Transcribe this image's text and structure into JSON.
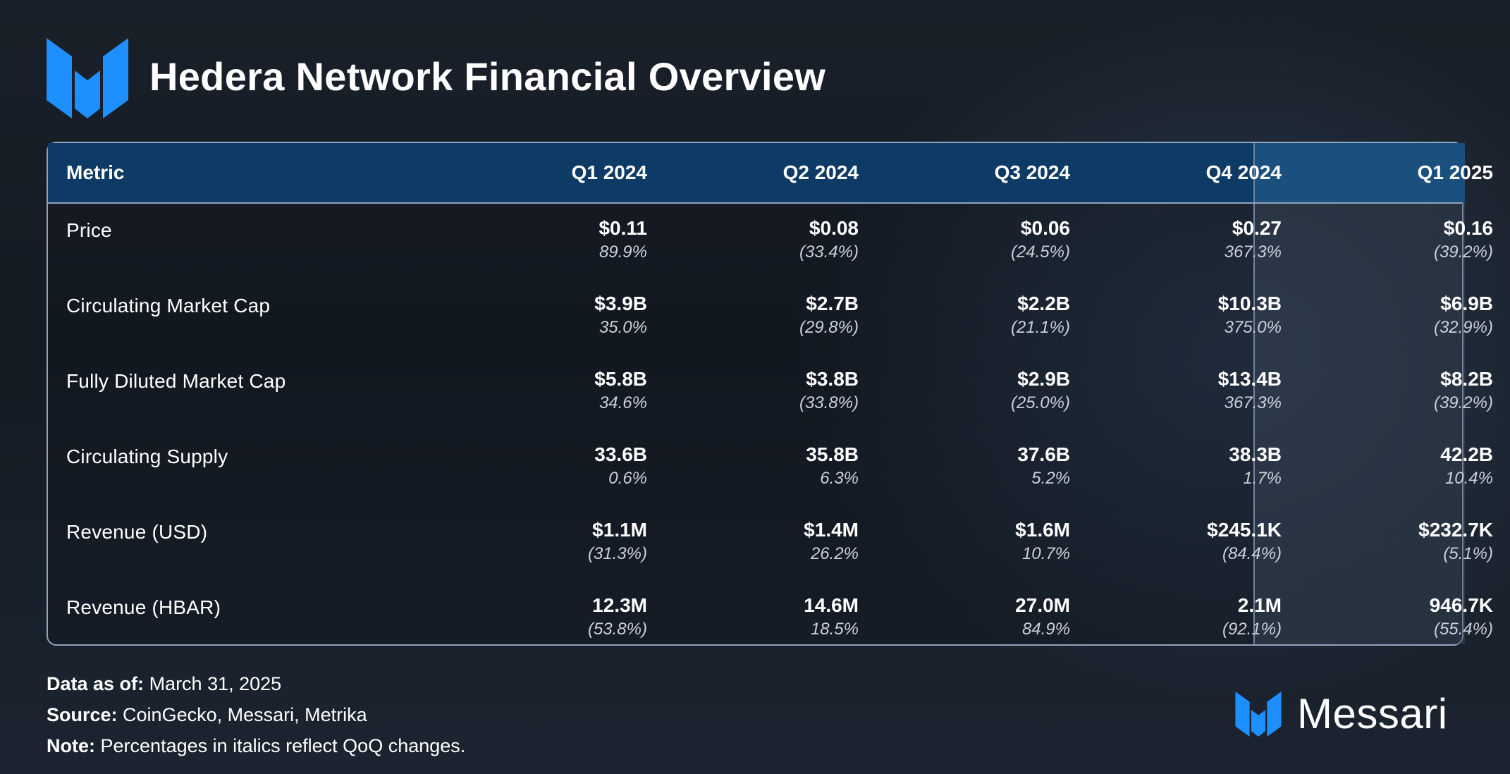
{
  "header": {
    "title": "Hedera Network Financial Overview",
    "logo_icon": "messari-m-logo-icon"
  },
  "table": {
    "columns": [
      "Metric",
      "Q1 2024",
      "Q2 2024",
      "Q3 2024",
      "Q4 2024",
      "Q1 2025"
    ],
    "highlighted_column": "Q1 2025",
    "rows": [
      {
        "metric": "Price",
        "values": [
          "$0.11",
          "$0.08",
          "$0.06",
          "$0.27",
          "$0.16"
        ],
        "changes": [
          "89.9%",
          "(33.4%)",
          "(24.5%)",
          "367.3%",
          "(39.2%)"
        ]
      },
      {
        "metric": "Circulating Market Cap",
        "values": [
          "$3.9B",
          "$2.7B",
          "$2.2B",
          "$10.3B",
          "$6.9B"
        ],
        "changes": [
          "35.0%",
          "(29.8%)",
          "(21.1%)",
          "375.0%",
          "(32.9%)"
        ]
      },
      {
        "metric": "Fully Diluted Market Cap",
        "values": [
          "$5.8B",
          "$3.8B",
          "$2.9B",
          "$13.4B",
          "$8.2B"
        ],
        "changes": [
          "34.6%",
          "(33.8%)",
          "(25.0%)",
          "367.3%",
          "(39.2%)"
        ]
      },
      {
        "metric": "Circulating Supply",
        "values": [
          "33.6B",
          "35.8B",
          "37.6B",
          "38.3B",
          "42.2B"
        ],
        "changes": [
          "0.6%",
          "6.3%",
          "5.2%",
          "1.7%",
          "10.4%"
        ]
      },
      {
        "metric": "Revenue (USD)",
        "values": [
          "$1.1M",
          "$1.4M",
          "$1.6M",
          "$245.1K",
          "$232.7K"
        ],
        "changes": [
          "(31.3%)",
          "26.2%",
          "10.7%",
          "(84.4%)",
          "(5.1%)"
        ]
      },
      {
        "metric": "Revenue (HBAR)",
        "values": [
          "12.3M",
          "14.6M",
          "27.0M",
          "2.1M",
          "946.7K"
        ],
        "changes": [
          "(53.8%)",
          "18.5%",
          "84.9%",
          "(92.1%)",
          "(55.4%)"
        ]
      }
    ]
  },
  "footer": {
    "data_as_of_label": "Data as of:",
    "data_as_of_value": "March 31, 2025",
    "source_label": "Source:",
    "source_value": "CoinGecko, Messari, Metrika",
    "note_label": "Note:",
    "note_value": "Percentages in italics reflect QoQ changes."
  },
  "brand": {
    "name": "Messari",
    "icon": "messari-m-logo-icon"
  },
  "colors": {
    "header_bg": "#0e3a66",
    "highlight_header_bg": "#1b4f7e",
    "logo_blue": "#1e8fff",
    "border": "#8fa4bd"
  }
}
